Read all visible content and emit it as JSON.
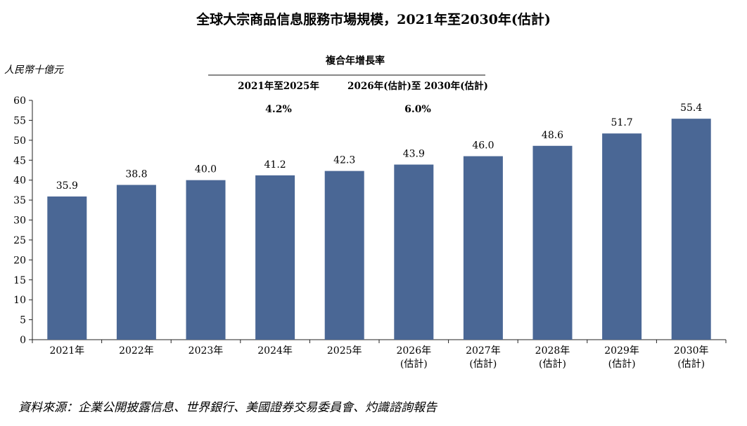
{
  "chart_data": {
    "type": "bar",
    "title": "全球大宗商品信息服務市場規模，2021年至2030年(估計)",
    "ylabel": "人民幣十億元",
    "xlabel": "",
    "ylim": [
      0,
      60
    ],
    "yticks": [
      0,
      5,
      10,
      15,
      20,
      25,
      30,
      35,
      40,
      45,
      50,
      55,
      60
    ],
    "grid": false,
    "bar_color": "#4a6795",
    "categories": [
      [
        "2021年"
      ],
      [
        "2022年"
      ],
      [
        "2023年"
      ],
      [
        "2024年"
      ],
      [
        "2025年"
      ],
      [
        "2026年",
        "(估計)"
      ],
      [
        "2027年",
        "(估計)"
      ],
      [
        "2028年",
        "(估計)"
      ],
      [
        "2029年",
        "(估計)"
      ],
      [
        "2030年",
        "(估計)"
      ]
    ],
    "values": [
      35.9,
      38.8,
      40.0,
      41.2,
      42.3,
      43.9,
      46.0,
      48.6,
      51.7,
      55.4
    ],
    "data_labels": [
      "35.9",
      "38.8",
      "40.0",
      "41.2",
      "42.3",
      "43.9",
      "46.0",
      "48.6",
      "51.7",
      "55.4"
    ],
    "cagr": {
      "header": "複合年增長率",
      "periods": [
        {
          "label": "2021年至2025年",
          "value": "4.2%"
        },
        {
          "label": "2026年(估計)至 2030年(估計)",
          "value": "6.0%"
        }
      ]
    },
    "source": "資料來源：企業公開披露信息、世界銀行、美國證券交易委員會、灼識諮詢報告"
  }
}
